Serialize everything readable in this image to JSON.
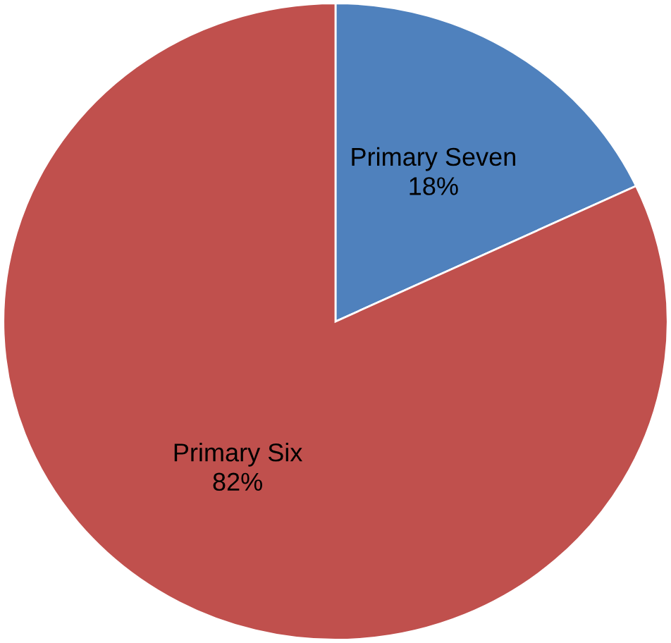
{
  "chart_data": {
    "type": "pie",
    "categories": [
      "Primary Seven",
      "Primary Six"
    ],
    "values": [
      18,
      82
    ],
    "colors": [
      "#4f81bd",
      "#c0504d"
    ],
    "value_labels": [
      "18%",
      "82%"
    ],
    "legend": false
  }
}
